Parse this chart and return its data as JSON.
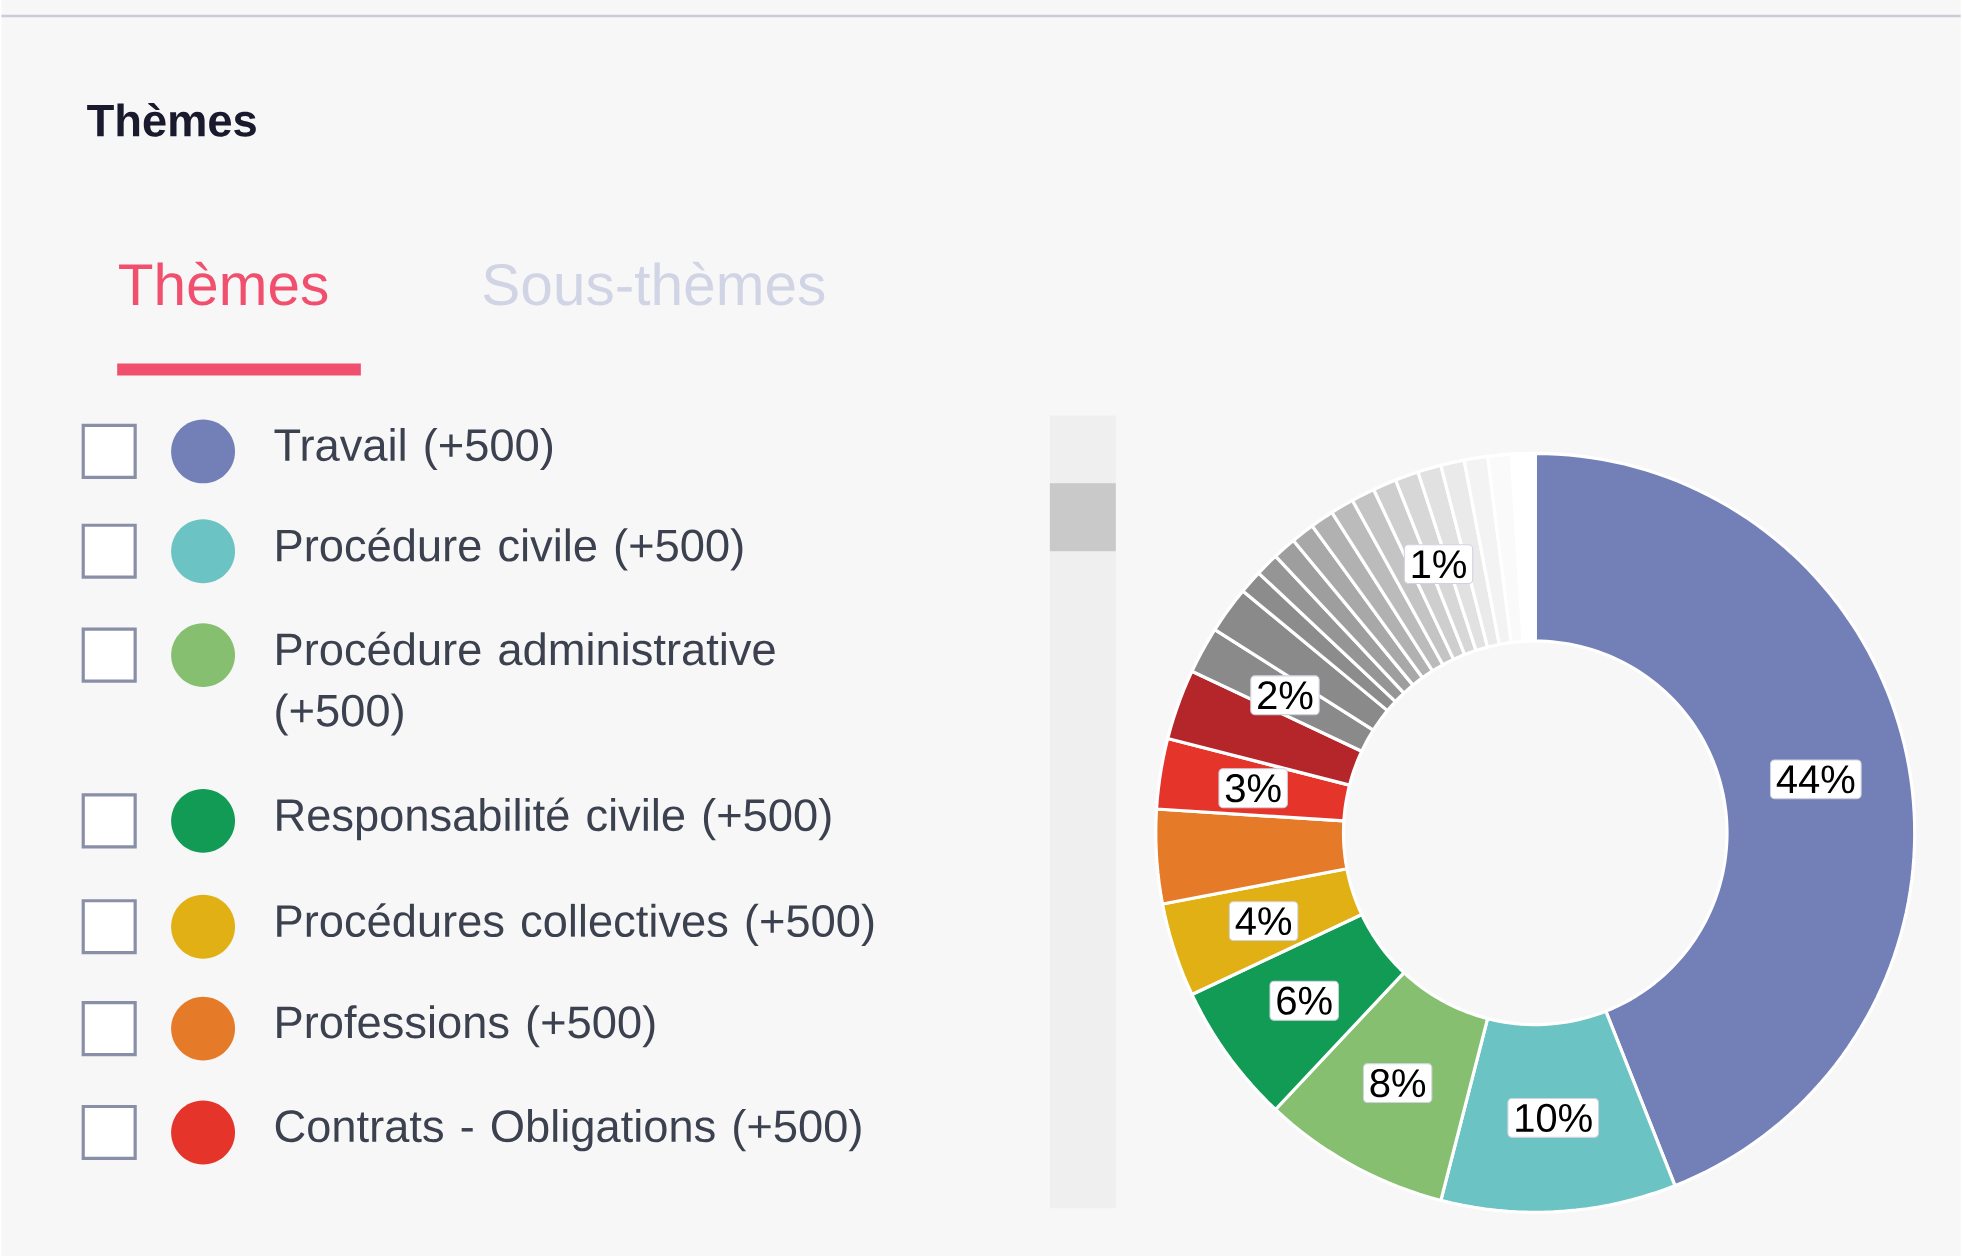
{
  "chart_data": {
    "type": "donut",
    "title": "Thèmes",
    "annotations": [
      "Thèmes",
      "Sous-thèmes"
    ],
    "categories": [
      "Travail (+500)",
      "Procédure civile (+500)",
      "Procédure administrative (+500)",
      "Responsabilité civile (+500)",
      "Procédures collectives (+500)",
      "Professions (+500)",
      "Contrats - Obligations (+500)",
      null,
      null,
      null,
      null,
      null,
      null,
      null,
      null,
      null,
      null,
      null,
      null,
      null,
      null,
      null,
      null,
      null
    ],
    "values": [
      44,
      10,
      8,
      6,
      4,
      4,
      3,
      3,
      2,
      2,
      1,
      1,
      1,
      1,
      1,
      1,
      1,
      1,
      1,
      1,
      1,
      1,
      1,
      1
    ],
    "colors": [
      "#7380b8",
      "#6cc3c3",
      "#86bf6f",
      "#119b55",
      "#e0b015",
      "#e57a28",
      "#e5342a",
      "#b5262a",
      "#8a8a8a",
      "#8a8a8a",
      "#8c8c8c",
      "#959595",
      "#9e9e9e",
      "#a8a8a8",
      "#b1b1b1",
      "#bbbbbb",
      "#c4c4c4",
      "#cecece",
      "#d7d7d7",
      "#e1e1e1",
      "#eaeaea",
      "#f3f3f3",
      "#fafafa",
      "#ffffff"
    ],
    "value_labels": [
      "44%",
      "10%",
      "8%",
      "6%",
      "4%",
      null,
      "3%",
      null,
      "2%",
      null,
      null,
      null,
      null,
      null,
      null,
      null,
      null,
      null,
      "1%",
      null,
      null,
      null,
      null,
      null
    ],
    "legend": "left"
  }
}
